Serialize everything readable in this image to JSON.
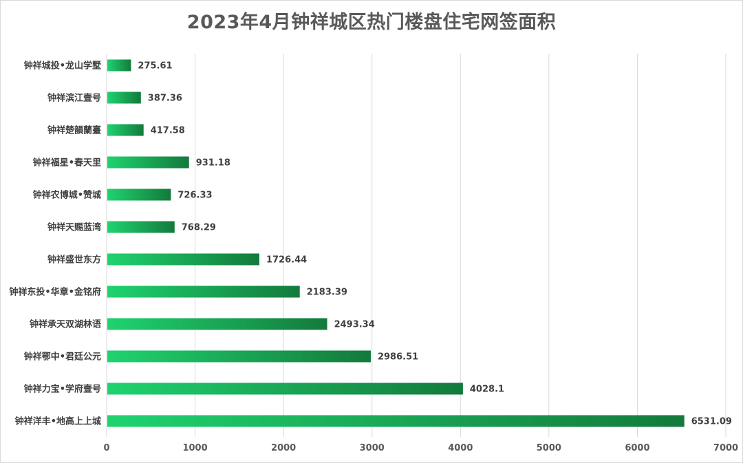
{
  "chart_data": {
    "type": "bar",
    "orientation": "horizontal",
    "title": "2023年4月钟祥城区热门楼盘住宅网签面积",
    "categories": [
      "钟祥城投•龙山学墅",
      "钟祥滨江壹号",
      "钟祥楚韻蘭臺",
      "钟祥福星•春天里",
      "钟祥农博城•赞城",
      "钟祥天赐蓝湾",
      "钟祥盛世东方",
      "钟祥东投•华章•金铭府",
      "钟祥承天双湖林语",
      "钟祥鄂中•君廷公元",
      "钟祥力宝•学府壹号",
      "钟祥洋丰•地高上上城"
    ],
    "values": [
      275.61,
      387.36,
      417.58,
      931.18,
      726.33,
      768.29,
      1726.44,
      2183.39,
      2493.34,
      2986.51,
      4028.1,
      6531.09
    ],
    "value_labels": [
      "275.61",
      "387.36",
      "417.58",
      "931.18",
      "726.33",
      "768.29",
      "1726.44",
      "2183.39",
      "2493.34",
      "2986.51",
      "4028.1",
      "6531.09"
    ],
    "xlim": [
      0,
      7000
    ],
    "xticks": [
      0,
      1000,
      2000,
      3000,
      4000,
      5000,
      6000,
      7000
    ],
    "grid": true,
    "bar_color_start": "#1fd36f",
    "bar_color_end": "#137a3c",
    "grid_color": "#d9d9d9"
  }
}
